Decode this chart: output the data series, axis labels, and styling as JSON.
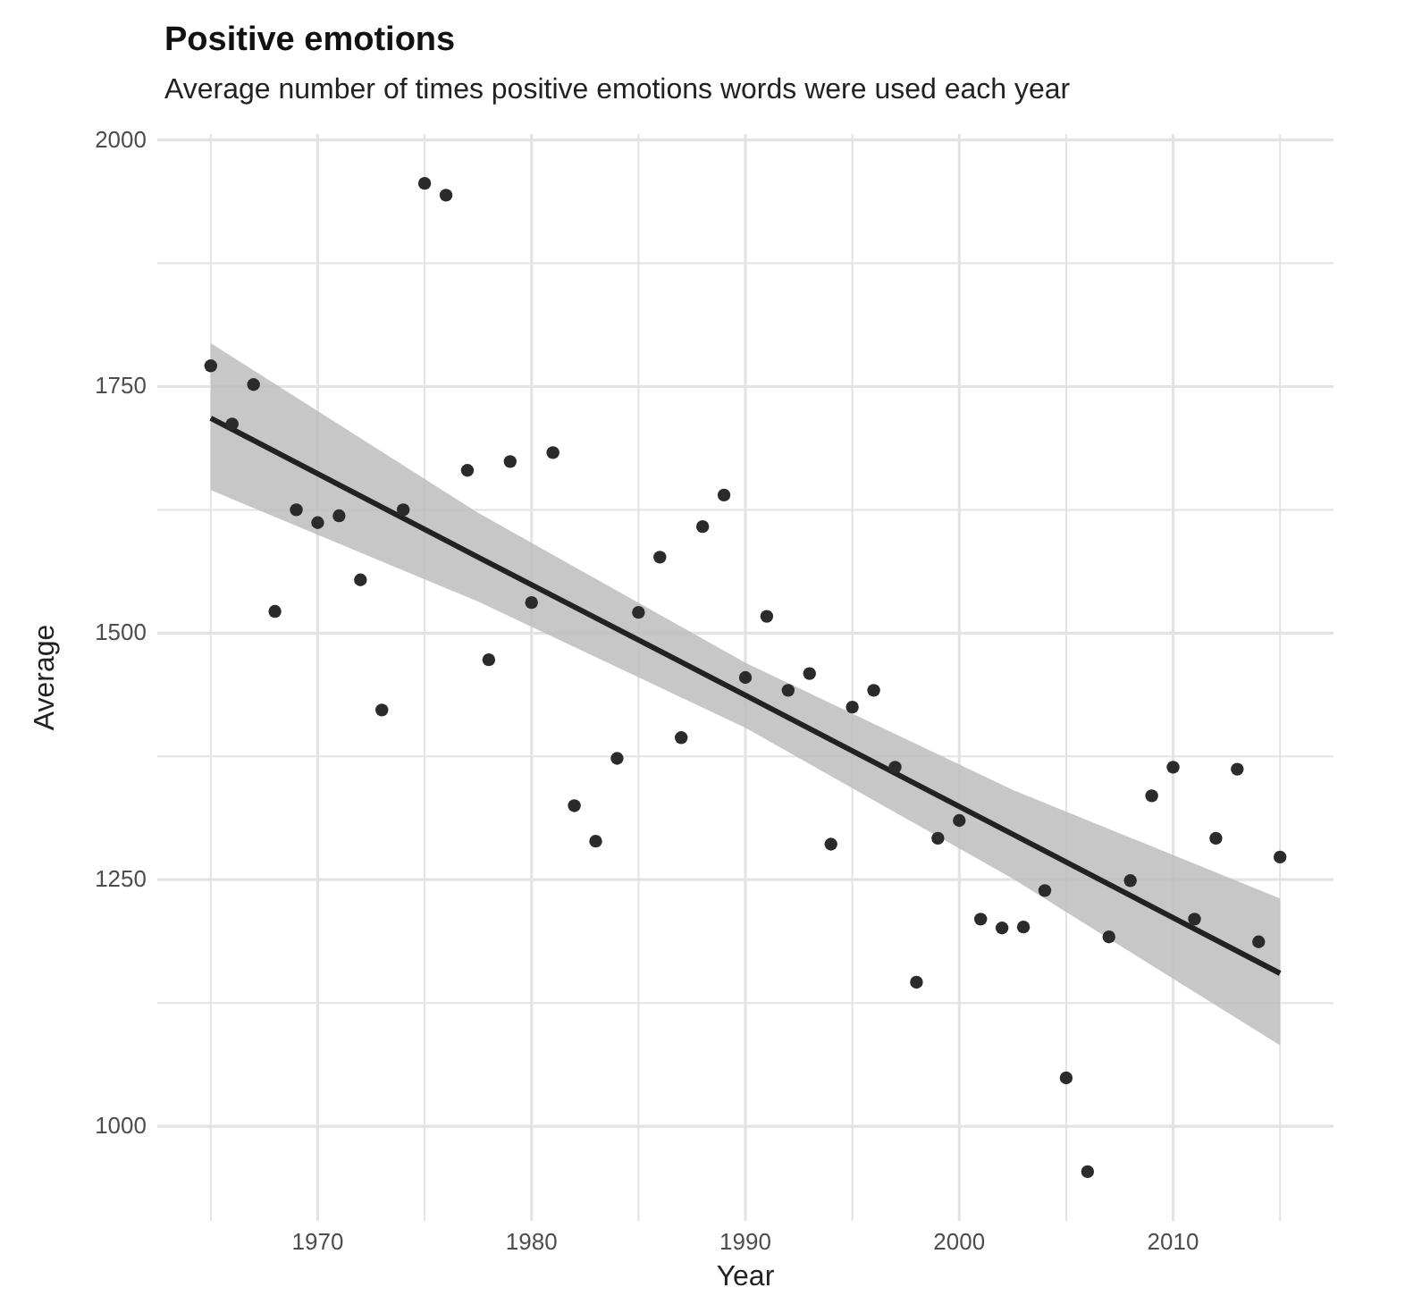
{
  "chart_data": {
    "type": "scatter",
    "title": "Positive emotions",
    "subtitle": "Average number of times positive emotions words were used each year",
    "xlabel": "Year",
    "ylabel": "Average",
    "xlim": [
      1962.5,
      2017.5
    ],
    "ylim": [
      904,
      2006
    ],
    "xticks": [
      {
        "value": 1965,
        "label": null
      },
      1970,
      {
        "value": 1975,
        "label": null
      },
      1980,
      {
        "value": 1985,
        "label": null
      },
      1990,
      {
        "value": 1995,
        "label": null
      },
      2000,
      {
        "value": 2005,
        "label": null
      },
      2010,
      {
        "value": 2015,
        "label": null
      }
    ],
    "yticks": [
      1000,
      {
        "value": 1125,
        "label": null
      },
      1250,
      {
        "value": 1375,
        "label": null
      },
      1500,
      {
        "value": 1625,
        "label": null
      },
      1750,
      {
        "value": 1875,
        "label": null
      },
      2000
    ],
    "grid": true,
    "marker": "circle",
    "series": [
      {
        "color": "#2b2b2b",
        "x": [
          1965,
          1966,
          1967,
          1968,
          1969,
          1970,
          1971,
          1972,
          1973,
          1974,
          1975,
          1976,
          1977,
          1978,
          1979,
          1980,
          1981,
          1982,
          1983,
          1984,
          1985,
          1986,
          1987,
          1988,
          1989,
          1990,
          1991,
          1992,
          1993,
          1994,
          1995,
          1996,
          1997,
          1998,
          1999,
          2000,
          2001,
          2002,
          2003,
          2004,
          2005,
          2006,
          2007,
          2008,
          2009,
          2010,
          2011,
          2012,
          2013,
          2014,
          2015
        ],
        "values": [
          1771,
          1712,
          1752,
          1522,
          1625,
          1612,
          1619,
          1554,
          1422,
          1625,
          1956,
          1944,
          1665,
          1473,
          1674,
          1531,
          1683,
          1325,
          1289,
          1373,
          1521,
          1577,
          1394,
          1608,
          1640,
          1455,
          1517,
          1442,
          1459,
          1286,
          1425,
          1442,
          1364,
          1146,
          1292,
          1310,
          1210,
          1201,
          1202,
          1239,
          1049,
          954,
          1192,
          1249,
          1335,
          1364,
          1210,
          1292,
          1362,
          1187,
          1273
        ]
      },
      {
        "type": "line",
        "color": "#222222",
        "marker": "none",
        "x": [
          1965,
          1977.5,
          1990,
          2002.5,
          2015
        ],
        "values": [
          1718,
          1577,
          1437,
          1296,
          1155
        ],
        "lower": [
          1645,
          1532,
          1404,
          1251,
          1082
        ],
        "upper": [
          1794,
          1622,
          1470,
          1341,
          1231
        ]
      }
    ]
  }
}
